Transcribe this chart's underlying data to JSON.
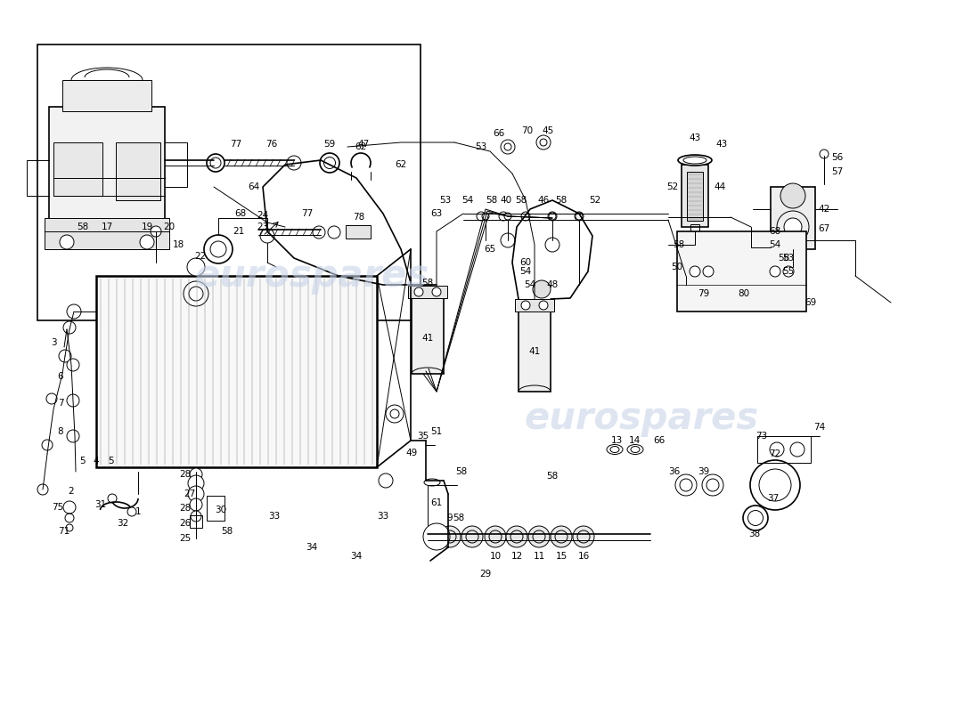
{
  "bg": "#ffffff",
  "lc": "#000000",
  "wm_color": "#c8d4e8",
  "wm1": "eurospares",
  "wm2": "eurospares"
}
